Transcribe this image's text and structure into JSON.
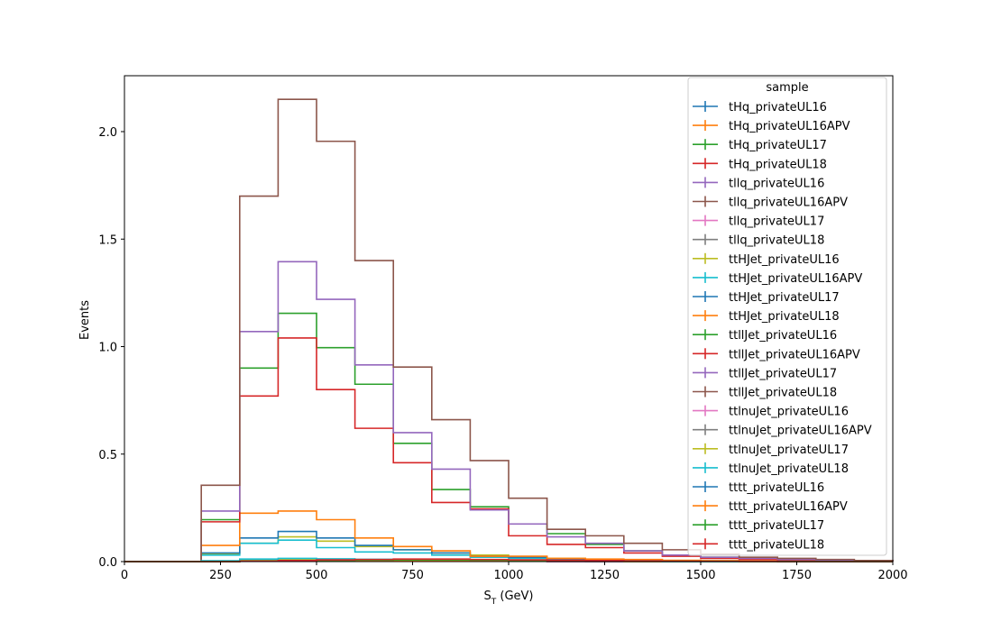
{
  "chart_data": {
    "type": "line",
    "style": "step-histogram",
    "xlabel_main": "S",
    "xlabel_sub": "T",
    "xlabel_unit": " (GeV)",
    "ylabel": "Events",
    "xlim": [
      0,
      2000
    ],
    "ylim": [
      0,
      2.26
    ],
    "xticks": [
      0,
      250,
      500,
      750,
      1000,
      1250,
      1500,
      1750,
      2000
    ],
    "yticks": [
      0.0,
      0.5,
      1.0,
      1.5,
      2.0
    ],
    "ytick_labels": [
      "0.0",
      "0.5",
      "1.0",
      "1.5",
      "2.0"
    ],
    "grid": false,
    "legend_title": "sample",
    "legend_position": "top-right",
    "bin_edges": [
      0,
      100,
      200,
      300,
      400,
      500,
      600,
      700,
      800,
      900,
      1000,
      1100,
      1200,
      1300,
      1400,
      1500,
      1600,
      1700,
      1800,
      1900,
      2000
    ],
    "series": [
      {
        "name": "tHq_privateUL16",
        "color": "#1f77b4",
        "values": [
          0,
          0,
          0,
          0.003,
          0.005,
          0.005,
          0.004,
          0.003,
          0.002,
          0.002,
          0.001,
          0.001,
          0.001,
          0,
          0,
          0,
          0,
          0,
          0,
          0
        ]
      },
      {
        "name": "tHq_privateUL16APV",
        "color": "#ff7f0e",
        "values": [
          0,
          0,
          0,
          0.003,
          0.005,
          0.005,
          0.004,
          0.003,
          0.002,
          0.002,
          0.001,
          0.001,
          0.001,
          0,
          0,
          0,
          0,
          0,
          0,
          0
        ]
      },
      {
        "name": "tHq_privateUL17",
        "color": "#2ca02c",
        "values": [
          0,
          0,
          0,
          0.004,
          0.007,
          0.007,
          0.006,
          0.004,
          0.003,
          0.002,
          0.002,
          0.001,
          0.001,
          0,
          0,
          0,
          0,
          0,
          0,
          0
        ]
      },
      {
        "name": "tHq_privateUL18",
        "color": "#d62728",
        "values": [
          0,
          0,
          0,
          0.005,
          0.009,
          0.009,
          0.007,
          0.005,
          0.004,
          0.003,
          0.002,
          0.001,
          0.001,
          0.001,
          0,
          0,
          0,
          0,
          0,
          0
        ]
      },
      {
        "name": "tllq_privateUL16",
        "color": "#9467bd",
        "values": [
          0,
          0,
          0,
          0.002,
          0.004,
          0.004,
          0.003,
          0.002,
          0.002,
          0.001,
          0.001,
          0,
          0,
          0,
          0,
          0,
          0,
          0,
          0,
          0
        ]
      },
      {
        "name": "tllq_privateUL16APV",
        "color": "#8c564b",
        "values": [
          0,
          0,
          0,
          0.002,
          0.004,
          0.004,
          0.003,
          0.002,
          0.002,
          0.001,
          0.001,
          0,
          0,
          0,
          0,
          0,
          0,
          0,
          0,
          0
        ]
      },
      {
        "name": "tllq_privateUL17",
        "color": "#e377c2",
        "values": [
          0,
          0,
          0,
          0.003,
          0.005,
          0.005,
          0.004,
          0.003,
          0.002,
          0.001,
          0.001,
          0,
          0,
          0,
          0,
          0,
          0,
          0,
          0,
          0
        ]
      },
      {
        "name": "tllq_privateUL18",
        "color": "#7f7f7f",
        "values": [
          0,
          0,
          0,
          0.004,
          0.006,
          0.006,
          0.005,
          0.004,
          0.003,
          0.002,
          0.001,
          0.001,
          0,
          0,
          0,
          0,
          0,
          0,
          0,
          0
        ]
      },
      {
        "name": "ttHJet_privateUL16",
        "color": "#bcbd22",
        "values": [
          0,
          0,
          0.035,
          0.085,
          0.115,
          0.095,
          0.07,
          0.055,
          0.04,
          0.03,
          0.02,
          0.015,
          0.01,
          0.008,
          0.005,
          0.004,
          0.003,
          0.002,
          0.001,
          0.001
        ]
      },
      {
        "name": "ttHJet_privateUL16APV",
        "color": "#17becf",
        "values": [
          0,
          0,
          0.03,
          0.085,
          0.1,
          0.065,
          0.045,
          0.04,
          0.03,
          0.02,
          0.015,
          0.01,
          0.008,
          0.006,
          0.004,
          0.003,
          0.002,
          0.001,
          0.001,
          0
        ]
      },
      {
        "name": "ttHJet_privateUL17",
        "color": "#1f77b4",
        "values": [
          0,
          0,
          0.04,
          0.11,
          0.14,
          0.11,
          0.075,
          0.055,
          0.04,
          0.025,
          0.02,
          0.012,
          0.01,
          0.008,
          0.005,
          0.004,
          0.002,
          0.002,
          0.001,
          0
        ]
      },
      {
        "name": "ttHJet_privateUL18",
        "color": "#ff7f0e",
        "values": [
          0,
          0,
          0.075,
          0.225,
          0.235,
          0.195,
          0.11,
          0.07,
          0.05,
          0.025,
          0.025,
          0.015,
          0.012,
          0.01,
          0.006,
          0.004,
          0.003,
          0.002,
          0.001,
          0
        ]
      },
      {
        "name": "ttllJet_privateUL16",
        "color": "#2ca02c",
        "values": [
          0,
          0,
          0.195,
          0.9,
          1.155,
          0.995,
          0.825,
          0.55,
          0.335,
          0.255,
          0.175,
          0.13,
          0.08,
          0.05,
          0.03,
          0.02,
          0.015,
          0.01,
          0.005,
          0.003
        ]
      },
      {
        "name": "ttllJet_privateUL16APV",
        "color": "#d62728",
        "values": [
          0,
          0,
          0.185,
          0.77,
          1.04,
          0.8,
          0.62,
          0.46,
          0.275,
          0.245,
          0.12,
          0.08,
          0.065,
          0.04,
          0.025,
          0.015,
          0.01,
          0.008,
          0.005,
          0.003
        ]
      },
      {
        "name": "ttllJet_privateUL17",
        "color": "#9467bd",
        "values": [
          0,
          0,
          0.235,
          1.07,
          1.395,
          1.22,
          0.915,
          0.6,
          0.43,
          0.24,
          0.175,
          0.115,
          0.085,
          0.05,
          0.03,
          0.02,
          0.015,
          0.01,
          0.005,
          0.003
        ]
      },
      {
        "name": "ttllJet_privateUL18",
        "color": "#8c564b",
        "values": [
          0,
          0,
          0.355,
          1.7,
          2.15,
          1.955,
          1.4,
          0.905,
          0.66,
          0.47,
          0.295,
          0.15,
          0.12,
          0.085,
          0.055,
          0.035,
          0.02,
          0.015,
          0.01,
          0.005
        ]
      },
      {
        "name": "ttlnuJet_privateUL16",
        "color": "#e377c2",
        "values": [
          0,
          0,
          0.002,
          0.008,
          0.01,
          0.009,
          0.007,
          0.005,
          0.004,
          0.003,
          0.002,
          0.001,
          0.001,
          0,
          0,
          0,
          0,
          0,
          0,
          0
        ]
      },
      {
        "name": "ttlnuJet_privateUL16APV",
        "color": "#7f7f7f",
        "values": [
          0,
          0,
          0.002,
          0.008,
          0.01,
          0.009,
          0.007,
          0.005,
          0.004,
          0.003,
          0.002,
          0.001,
          0.001,
          0,
          0,
          0,
          0,
          0,
          0,
          0
        ]
      },
      {
        "name": "ttlnuJet_privateUL17",
        "color": "#bcbd22",
        "values": [
          0,
          0,
          0.003,
          0.01,
          0.012,
          0.011,
          0.009,
          0.006,
          0.005,
          0.003,
          0.002,
          0.002,
          0.001,
          0,
          0,
          0,
          0,
          0,
          0,
          0
        ]
      },
      {
        "name": "ttlnuJet_privateUL18",
        "color": "#17becf",
        "values": [
          0,
          0,
          0.004,
          0.012,
          0.015,
          0.013,
          0.011,
          0.008,
          0.006,
          0.004,
          0.003,
          0.002,
          0.001,
          0.001,
          0,
          0,
          0,
          0,
          0,
          0
        ]
      },
      {
        "name": "tttt_privateUL16",
        "color": "#1f77b4",
        "values": [
          0,
          0,
          0,
          0.001,
          0.002,
          0.003,
          0.004,
          0.005,
          0.005,
          0.004,
          0.003,
          0.003,
          0.002,
          0.002,
          0.001,
          0.001,
          0,
          0,
          0,
          0
        ]
      },
      {
        "name": "tttt_privateUL16APV",
        "color": "#ff7f0e",
        "values": [
          0,
          0,
          0,
          0.001,
          0.002,
          0.003,
          0.004,
          0.005,
          0.005,
          0.004,
          0.003,
          0.003,
          0.002,
          0.002,
          0.001,
          0.001,
          0,
          0,
          0,
          0
        ]
      },
      {
        "name": "tttt_privateUL17",
        "color": "#2ca02c",
        "values": [
          0,
          0,
          0,
          0.002,
          0.004,
          0.006,
          0.007,
          0.008,
          0.008,
          0.007,
          0.006,
          0.005,
          0.004,
          0.003,
          0.002,
          0.001,
          0.001,
          0,
          0,
          0
        ]
      },
      {
        "name": "tttt_privateUL18",
        "color": "#d62728",
        "values": [
          0,
          0,
          0,
          0.002,
          0.005,
          0.008,
          0.01,
          0.012,
          0.012,
          0.01,
          0.008,
          0.006,
          0.005,
          0.003,
          0.002,
          0.001,
          0.001,
          0,
          0,
          0
        ]
      }
    ]
  }
}
